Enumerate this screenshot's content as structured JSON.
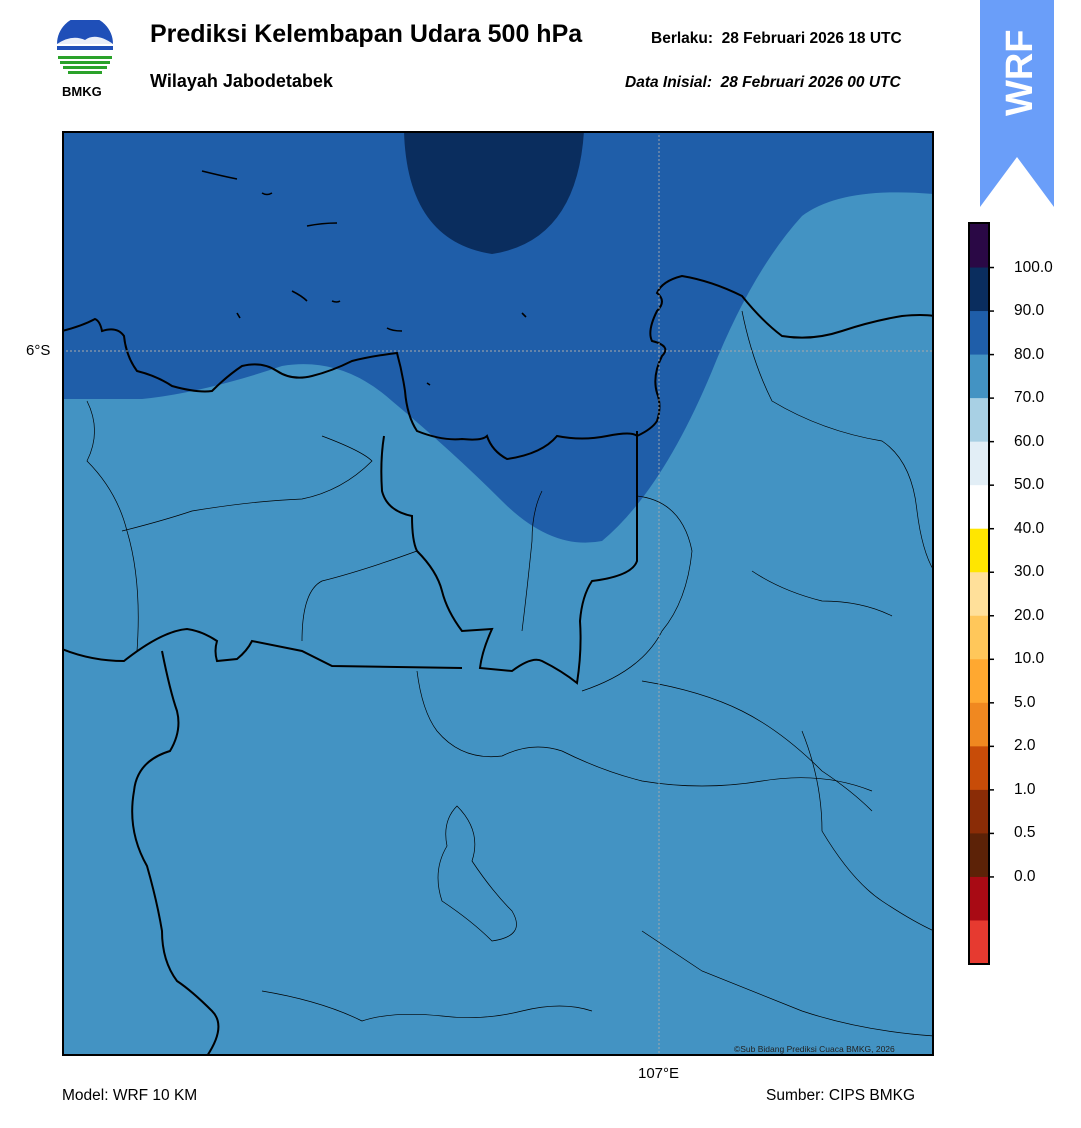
{
  "header": {
    "logo_text": "BMKG",
    "title": "Prediksi Kelembapan Udara 500 hPa",
    "subtitle": "Wilayah Jabodetabek",
    "valid_time": "Berlaku:  28 Februari 2026 18 UTC",
    "initial_data": "Data Inisial:  28 Februari 2026 00 UTC"
  },
  "badge": {
    "text": "WRF",
    "color": "#6a9ef9"
  },
  "map": {
    "lat_label": "6°S",
    "lon_label": "107°E",
    "copyright": "©Sub Bidang Prediksi Cuaca BMKG, 2026"
  },
  "colorbar": {
    "labels": [
      "100.0",
      "90.0",
      "80.0",
      "70.0",
      "60.0",
      "50.0",
      "40.0",
      "30.0",
      "20.0",
      "10.0",
      "5.0",
      "2.0",
      "1.0",
      "0.5",
      "0.0"
    ],
    "colors_top_to_bottom": [
      "#2a0845",
      "#0a2d5e",
      "#1f5ea9",
      "#4393c3",
      "#a8d0e4",
      "#e2eef6",
      "#ffffff",
      "#ffe600",
      "#ffe09a",
      "#ffc75a",
      "#ffa830",
      "#f08820",
      "#c84c08",
      "#8a2c06",
      "#5c2207",
      "#a80a14",
      "#e63a30"
    ]
  },
  "footer": {
    "model": "Model: WRF 10 KM",
    "source": "Sumber: CIPS BMKG"
  }
}
